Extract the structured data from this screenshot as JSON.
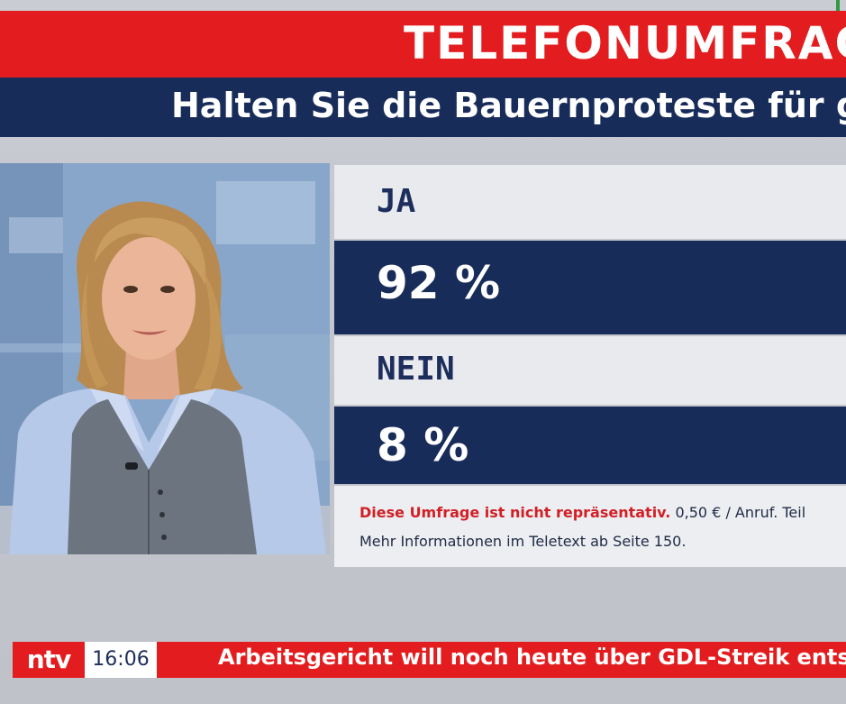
{
  "header": {
    "title": "TELEFONUMFRAGE",
    "question": "Halten Sie die Bauernproteste für ge"
  },
  "poll": {
    "answers": [
      {
        "label": "JA",
        "percent_text": "92 %",
        "percent": 92
      },
      {
        "label": "NEIN",
        "percent_text": "8 %",
        "percent": 8
      }
    ],
    "disclaimer_red": "Diese Umfrage ist nicht repräsentativ.",
    "disclaimer_rest": " 0,50 € / Anruf. Teil",
    "info": "Mehr Informationen im Teletext ab Seite 150."
  },
  "ticker": {
    "logo": "ntv",
    "time": "16:06",
    "headline": "Arbeitsgericht will noch heute über GDL-Streik entsc"
  },
  "colors": {
    "brand_red": "#e31d1f",
    "navy": "#182c5a",
    "label_bg": "#e9eaee"
  }
}
